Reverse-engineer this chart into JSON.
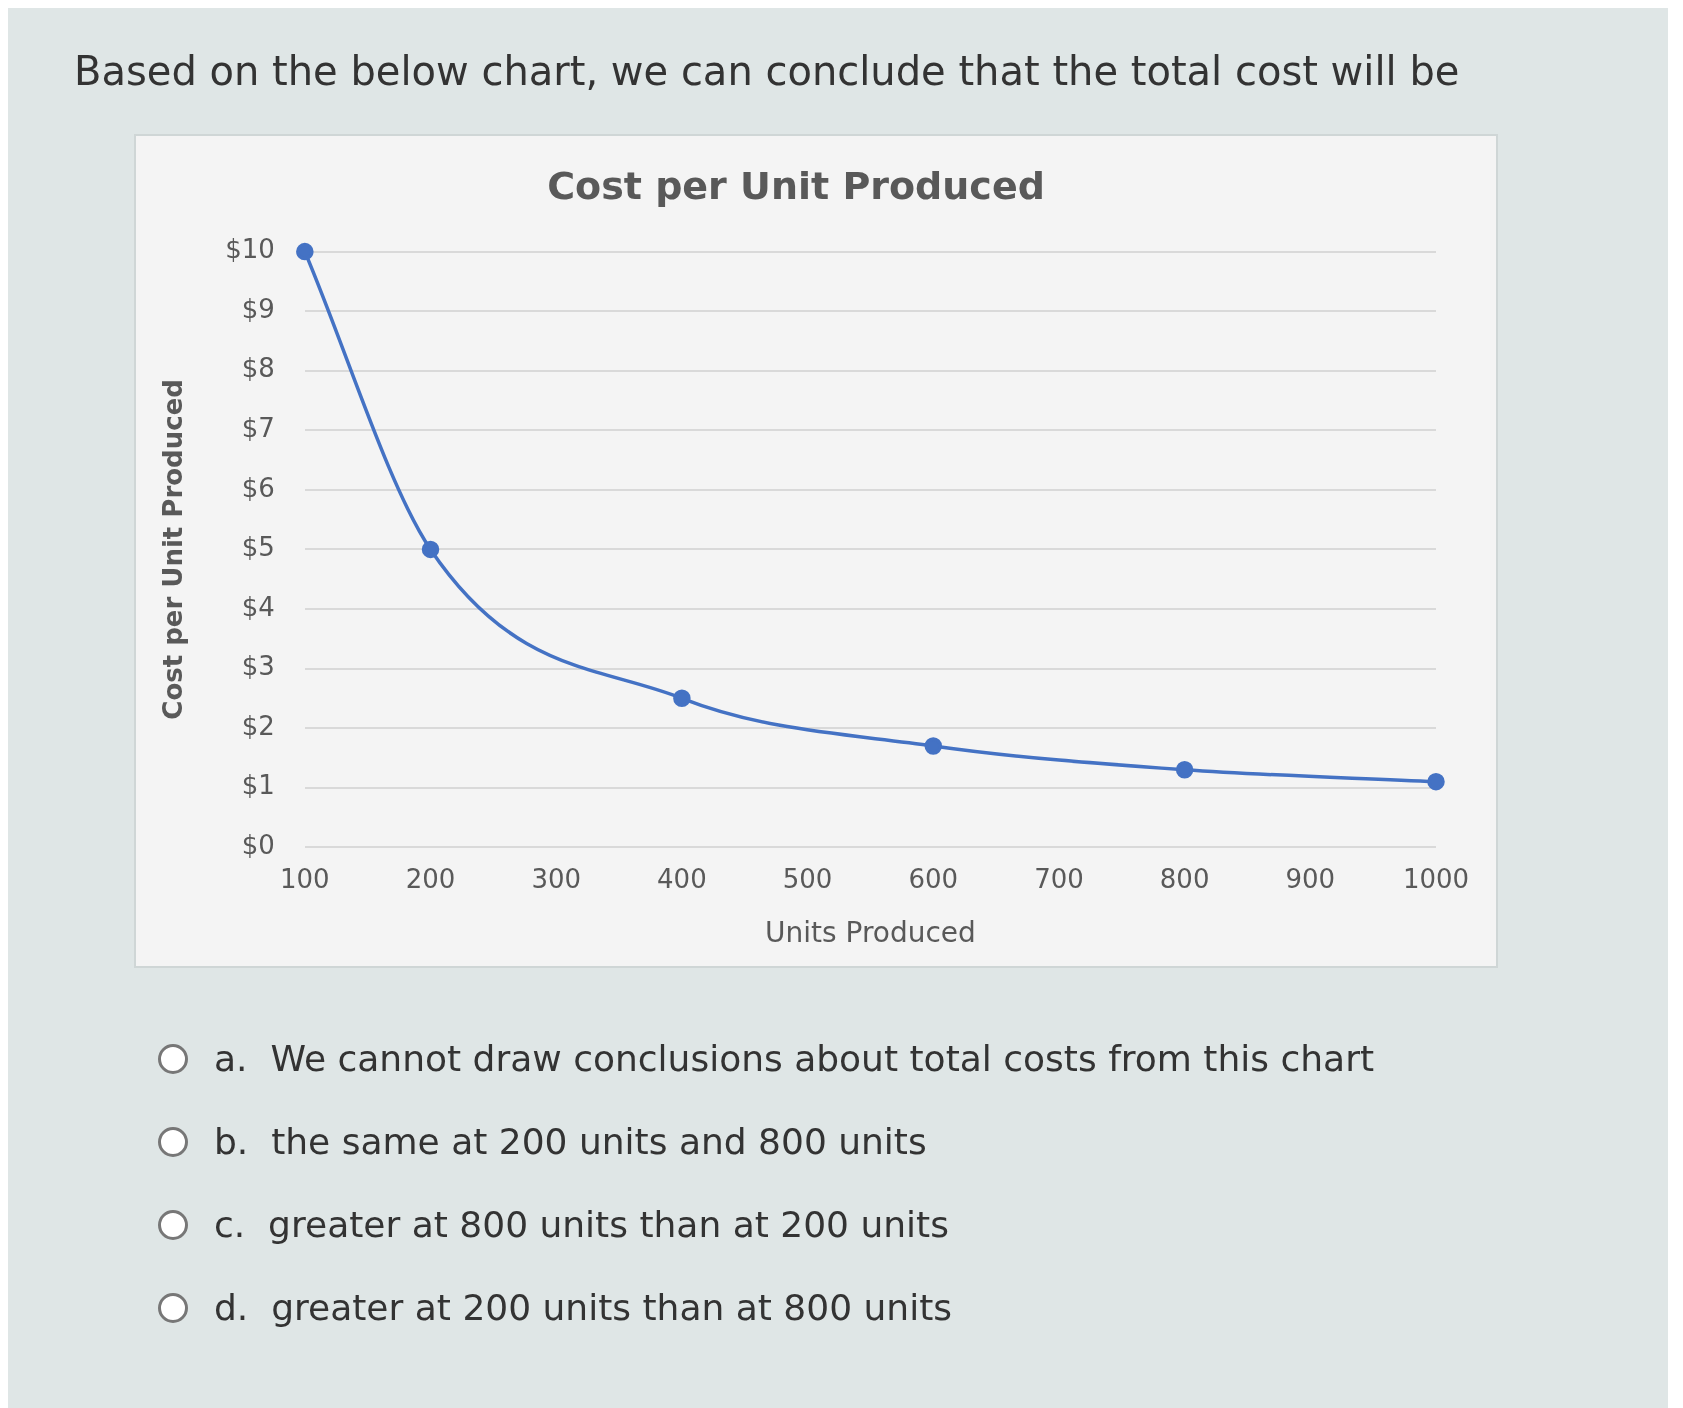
{
  "chart_data": {
    "type": "line",
    "title": "Cost per Unit Produced",
    "xlabel": "Units Produced",
    "ylabel": "Cost per Unit Produced",
    "x": [
      100,
      200,
      400,
      600,
      800,
      1000
    ],
    "series": [
      {
        "color": "#4472c4",
        "values": [
          10,
          5,
          2.5,
          1.7,
          1.3,
          1.1
        ]
      }
    ],
    "xlim": [
      100,
      1000
    ],
    "xticks": [
      100,
      200,
      300,
      400,
      500,
      600,
      700,
      800,
      900,
      1000
    ],
    "ylim": [
      0,
      10
    ],
    "yticks": [
      {
        "value": 0,
        "label": "$0"
      },
      {
        "value": 1,
        "label": "$1"
      },
      {
        "value": 2,
        "label": "$2"
      },
      {
        "value": 3,
        "label": "$3"
      },
      {
        "value": 4,
        "label": "$4"
      },
      {
        "value": 5,
        "label": "$5"
      },
      {
        "value": 6,
        "label": "$6"
      },
      {
        "value": 7,
        "label": "$7"
      },
      {
        "value": 8,
        "label": "$8"
      },
      {
        "value": 9,
        "label": "$9"
      },
      {
        "value": 10,
        "label": "$10"
      }
    ],
    "grid": "y",
    "legend": false,
    "marker": "circle",
    "line_style": "solid",
    "annotations": [
      "Based on the below chart, we can conclude that the total cost will be",
      "a.  We cannot draw conclusions about total costs from this chart",
      "b.  the same at 200 units and 800 units",
      "c.  greater at 800 units than at 200 units",
      "d.  greater at 200 units than at 800 units"
    ]
  }
}
